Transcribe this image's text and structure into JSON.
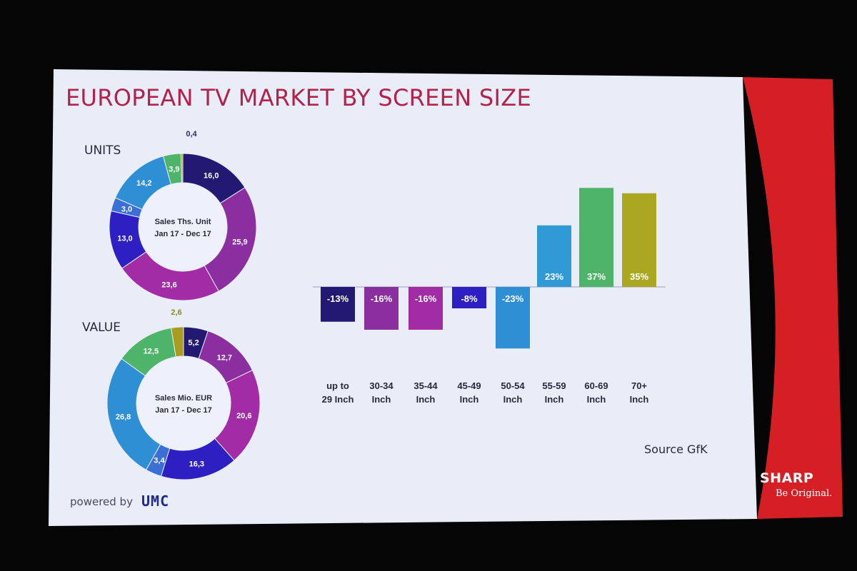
{
  "slide": {
    "title": "EUROPEAN TV MARKET BY SCREEN SIZE",
    "source": "Source GfK",
    "powered_by": "powered by",
    "powered_logo_text": "UMC",
    "brand": "SHARP",
    "tagline": "Be Original.",
    "colors": {
      "background": "#e9edf8",
      "title": "#b3224a",
      "brand_red": "#d51f25"
    }
  },
  "chart_data": [
    {
      "type": "pie",
      "title": "UNITS",
      "center_label": [
        "Sales Ths. Unit",
        "Jan 17 - Dec 17"
      ],
      "slices": [
        {
          "label": "16,0",
          "value": 16.0,
          "color": "#221a72"
        },
        {
          "label": "25,9",
          "value": 25.9,
          "color": "#8a2ea0"
        },
        {
          "label": "23,6",
          "value": 23.6,
          "color": "#a12ca6"
        },
        {
          "label": "13,0",
          "value": 13.0,
          "color": "#2d1fc2"
        },
        {
          "label": "3,0",
          "value": 3.0,
          "color": "#3b6fd6"
        },
        {
          "label": "14,2",
          "value": 14.2,
          "color": "#2f8fd4"
        },
        {
          "label": "3,9",
          "value": 3.9,
          "color": "#4eb46a"
        },
        {
          "label": "0,4",
          "value": 0.4,
          "color": "#a99a20"
        }
      ]
    },
    {
      "type": "pie",
      "title": "VALUE",
      "center_label": [
        "Sales Mio. EUR",
        "Jan 17 - Dec 17"
      ],
      "slices": [
        {
          "label": "5,2",
          "value": 5.2,
          "color": "#221a72"
        },
        {
          "label": "12,7",
          "value": 12.7,
          "color": "#8a2ea0"
        },
        {
          "label": "20,6",
          "value": 20.6,
          "color": "#a12ca6"
        },
        {
          "label": "16,3",
          "value": 16.3,
          "color": "#2d1fc2"
        },
        {
          "label": "3,4",
          "value": 3.4,
          "color": "#3b6fd6"
        },
        {
          "label": "26,8",
          "value": 26.8,
          "color": "#2f8fd4"
        },
        {
          "label": "12,5",
          "value": 12.5,
          "color": "#4eb46a"
        },
        {
          "label": "2,6",
          "value": 2.6,
          "color": "#a99a20"
        }
      ]
    },
    {
      "type": "bar",
      "categories": [
        [
          "up to",
          "29 Inch"
        ],
        [
          "30-34",
          "Inch"
        ],
        [
          "35-44",
          "Inch"
        ],
        [
          "45-49",
          "Inch"
        ],
        [
          "50-54",
          "Inch"
        ],
        [
          "55-59",
          "Inch"
        ],
        [
          "60-69",
          "Inch"
        ],
        [
          "70+",
          "Inch"
        ]
      ],
      "values": [
        -13,
        -16,
        -16,
        -8,
        -23,
        23,
        37,
        35
      ],
      "value_labels": [
        "-13%",
        "-16%",
        "-16%",
        "-8%",
        "-23%",
        "23%",
        "37%",
        "35%"
      ],
      "colors": [
        "#221a72",
        "#8a2ea0",
        "#a12ca6",
        "#2d1fc2",
        "#2f8fd4",
        "#2f9ad6",
        "#4eb46a",
        "#a9a820"
      ],
      "ylim": [
        -23,
        37
      ]
    }
  ]
}
